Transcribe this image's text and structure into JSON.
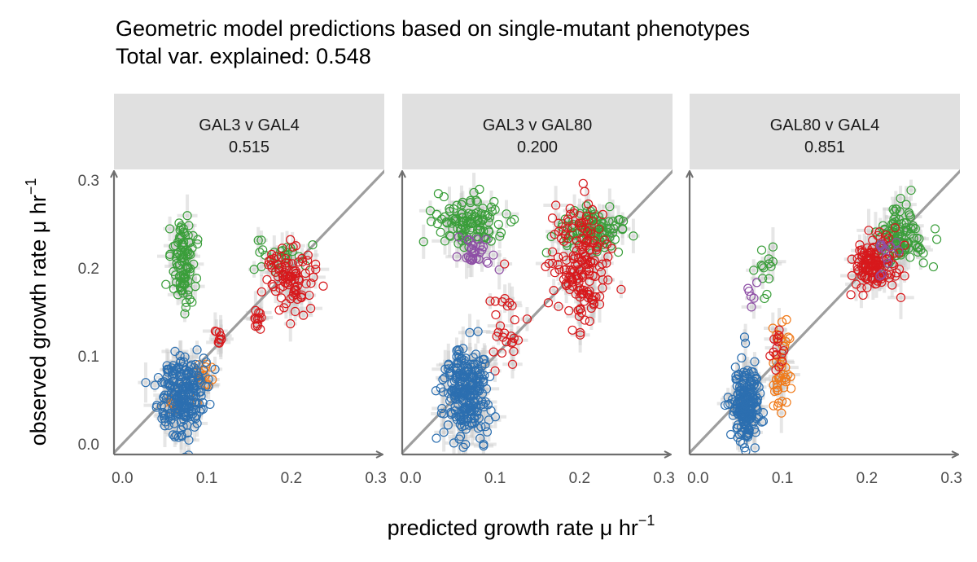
{
  "title_line1": "Geometric model predictions based on single-mutant phenotypes",
  "title_line2": "Total var. explained: 0.548",
  "colors": {
    "blue": "#2c6fb0",
    "orange": "#f07a1a",
    "green": "#3a9e3a",
    "red": "#d7191c",
    "purple": "#8e4fa6",
    "identity_line": "#9e9e9e",
    "error_bar": "#c8c8c8",
    "strip_bg": "#e0e0e0",
    "axis": "#6e6e6e"
  },
  "chart_data": {
    "type": "scatter",
    "xlabel": "predicted growth rate μ hr",
    "xlabel_sup": "−1",
    "ylabel": "observed growth rate μ hr",
    "ylabel_sup": "−1",
    "xlim": [
      -0.01,
      0.31
    ],
    "ylim": [
      -0.012,
      0.312
    ],
    "x_ticks": [
      "0.0",
      "0.1",
      "0.2",
      "0.3"
    ],
    "y_ticks": [
      "0.0",
      "0.1",
      "0.2",
      "0.3"
    ],
    "identity_line": true,
    "grid": false,
    "panels": [
      {
        "label": "GAL3 v GAL4",
        "value": "0.515",
        "clusters": [
          {
            "color": "green",
            "cx": 0.072,
            "cy": 0.21,
            "sx": 0.008,
            "sy": 0.022,
            "n": 95
          },
          {
            "color": "green",
            "cx": 0.19,
            "cy": 0.215,
            "sx": 0.018,
            "sy": 0.01,
            "n": 25
          },
          {
            "color": "red",
            "cx": 0.2,
            "cy": 0.188,
            "sx": 0.016,
            "sy": 0.018,
            "n": 90
          },
          {
            "color": "red",
            "cx": 0.16,
            "cy": 0.14,
            "sx": 0.004,
            "sy": 0.008,
            "n": 12
          },
          {
            "color": "red",
            "cx": 0.115,
            "cy": 0.12,
            "sx": 0.003,
            "sy": 0.006,
            "n": 10
          },
          {
            "color": "orange",
            "cx": 0.095,
            "cy": 0.075,
            "sx": 0.005,
            "sy": 0.012,
            "n": 18
          },
          {
            "color": "orange",
            "cx": 0.065,
            "cy": 0.045,
            "sx": 0.008,
            "sy": 0.01,
            "n": 10
          },
          {
            "color": "blue",
            "cx": 0.07,
            "cy": 0.055,
            "sx": 0.013,
            "sy": 0.022,
            "n": 230
          }
        ]
      },
      {
        "label": "GAL3 v GAL80",
        "value": "0.200",
        "clusters": [
          {
            "color": "green",
            "cx": 0.07,
            "cy": 0.25,
            "sx": 0.02,
            "sy": 0.014,
            "n": 110
          },
          {
            "color": "purple",
            "cx": 0.075,
            "cy": 0.215,
            "sx": 0.01,
            "sy": 0.012,
            "n": 30
          },
          {
            "color": "green",
            "cx": 0.22,
            "cy": 0.245,
            "sx": 0.022,
            "sy": 0.012,
            "n": 90
          },
          {
            "color": "red",
            "cx": 0.2,
            "cy": 0.205,
            "sx": 0.018,
            "sy": 0.035,
            "n": 170
          },
          {
            "color": "red",
            "cx": 0.11,
            "cy": 0.125,
            "sx": 0.008,
            "sy": 0.04,
            "n": 28
          },
          {
            "color": "blue",
            "cx": 0.065,
            "cy": 0.058,
            "sx": 0.013,
            "sy": 0.025,
            "n": 260
          }
        ]
      },
      {
        "label": "GAL80 v GAL4",
        "value": "0.851",
        "clusters": [
          {
            "color": "green",
            "cx": 0.24,
            "cy": 0.235,
            "sx": 0.014,
            "sy": 0.016,
            "n": 110
          },
          {
            "color": "red",
            "cx": 0.21,
            "cy": 0.205,
            "sx": 0.014,
            "sy": 0.014,
            "n": 130
          },
          {
            "color": "purple",
            "cx": 0.225,
            "cy": 0.215,
            "sx": 0.01,
            "sy": 0.01,
            "n": 12
          },
          {
            "color": "green",
            "cx": 0.078,
            "cy": 0.2,
            "sx": 0.005,
            "sy": 0.015,
            "n": 14
          },
          {
            "color": "purple",
            "cx": 0.065,
            "cy": 0.17,
            "sx": 0.004,
            "sy": 0.008,
            "n": 6
          },
          {
            "color": "orange",
            "cx": 0.1,
            "cy": 0.085,
            "sx": 0.006,
            "sy": 0.025,
            "n": 45
          },
          {
            "color": "red",
            "cx": 0.095,
            "cy": 0.11,
            "sx": 0.005,
            "sy": 0.012,
            "n": 14
          },
          {
            "color": "blue",
            "cx": 0.057,
            "cy": 0.045,
            "sx": 0.008,
            "sy": 0.022,
            "n": 210
          }
        ]
      }
    ]
  }
}
